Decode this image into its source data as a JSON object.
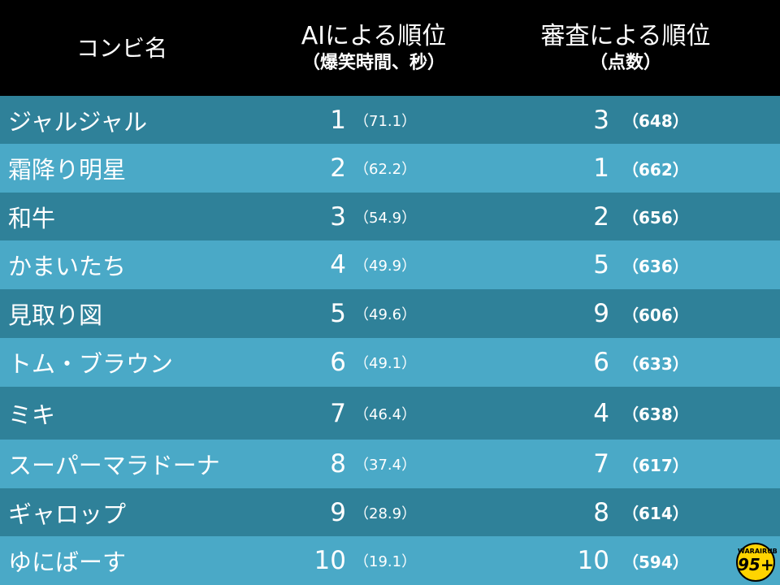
{
  "header": {
    "col_name": "コンビ名",
    "col_ai_title": "AIによる順位",
    "col_ai_sub": "（爆笑時間、秒）",
    "col_judge_title": "審査による順位",
    "col_judge_sub": "（点数）"
  },
  "rows": [
    {
      "name": "ジャルジャル",
      "ai_rank": "1",
      "ai_value": "（71.1）",
      "judge_rank": "3",
      "judge_value": "（648）"
    },
    {
      "name": "霜降り明星",
      "ai_rank": "2",
      "ai_value": "（62.2）",
      "judge_rank": "1",
      "judge_value": "（662）"
    },
    {
      "name": "和牛",
      "ai_rank": "3",
      "ai_value": "（54.9）",
      "judge_rank": "2",
      "judge_value": "（656）"
    },
    {
      "name": "かまいたち",
      "ai_rank": "4",
      "ai_value": "（49.9）",
      "judge_rank": "5",
      "judge_value": "（636）"
    },
    {
      "name": "見取り図",
      "ai_rank": "5",
      "ai_value": "（49.6）",
      "judge_rank": "9",
      "judge_value": "（606）"
    },
    {
      "name": "トム・ブラウン",
      "ai_rank": "6",
      "ai_value": "（49.1）",
      "judge_rank": "6",
      "judge_value": "（633）"
    },
    {
      "name": "ミキ",
      "ai_rank": "7",
      "ai_value": "（46.4）",
      "judge_rank": "4",
      "judge_value": "（638）"
    },
    {
      "name": "スーパーマラドーナ",
      "ai_rank": "8",
      "ai_value": "（37.4）",
      "judge_rank": "7",
      "judge_value": "（617）"
    },
    {
      "name": "ギャロップ",
      "ai_rank": "9",
      "ai_value": "（28.9）",
      "judge_rank": "8",
      "judge_value": "（614）"
    },
    {
      "name": "ゆにばーす",
      "ai_rank": "10",
      "ai_value": "（19.1）",
      "judge_rank": "10",
      "judge_value": "（594）"
    }
  ],
  "logo": {
    "top_text": "WARAIRUB",
    "main_text": "95+"
  },
  "colors": {
    "header_bg": "#000000",
    "row_dark": "#2f8199",
    "row_light": "#4aa9c7",
    "text": "#ffffff",
    "logo": "#ffd400"
  }
}
